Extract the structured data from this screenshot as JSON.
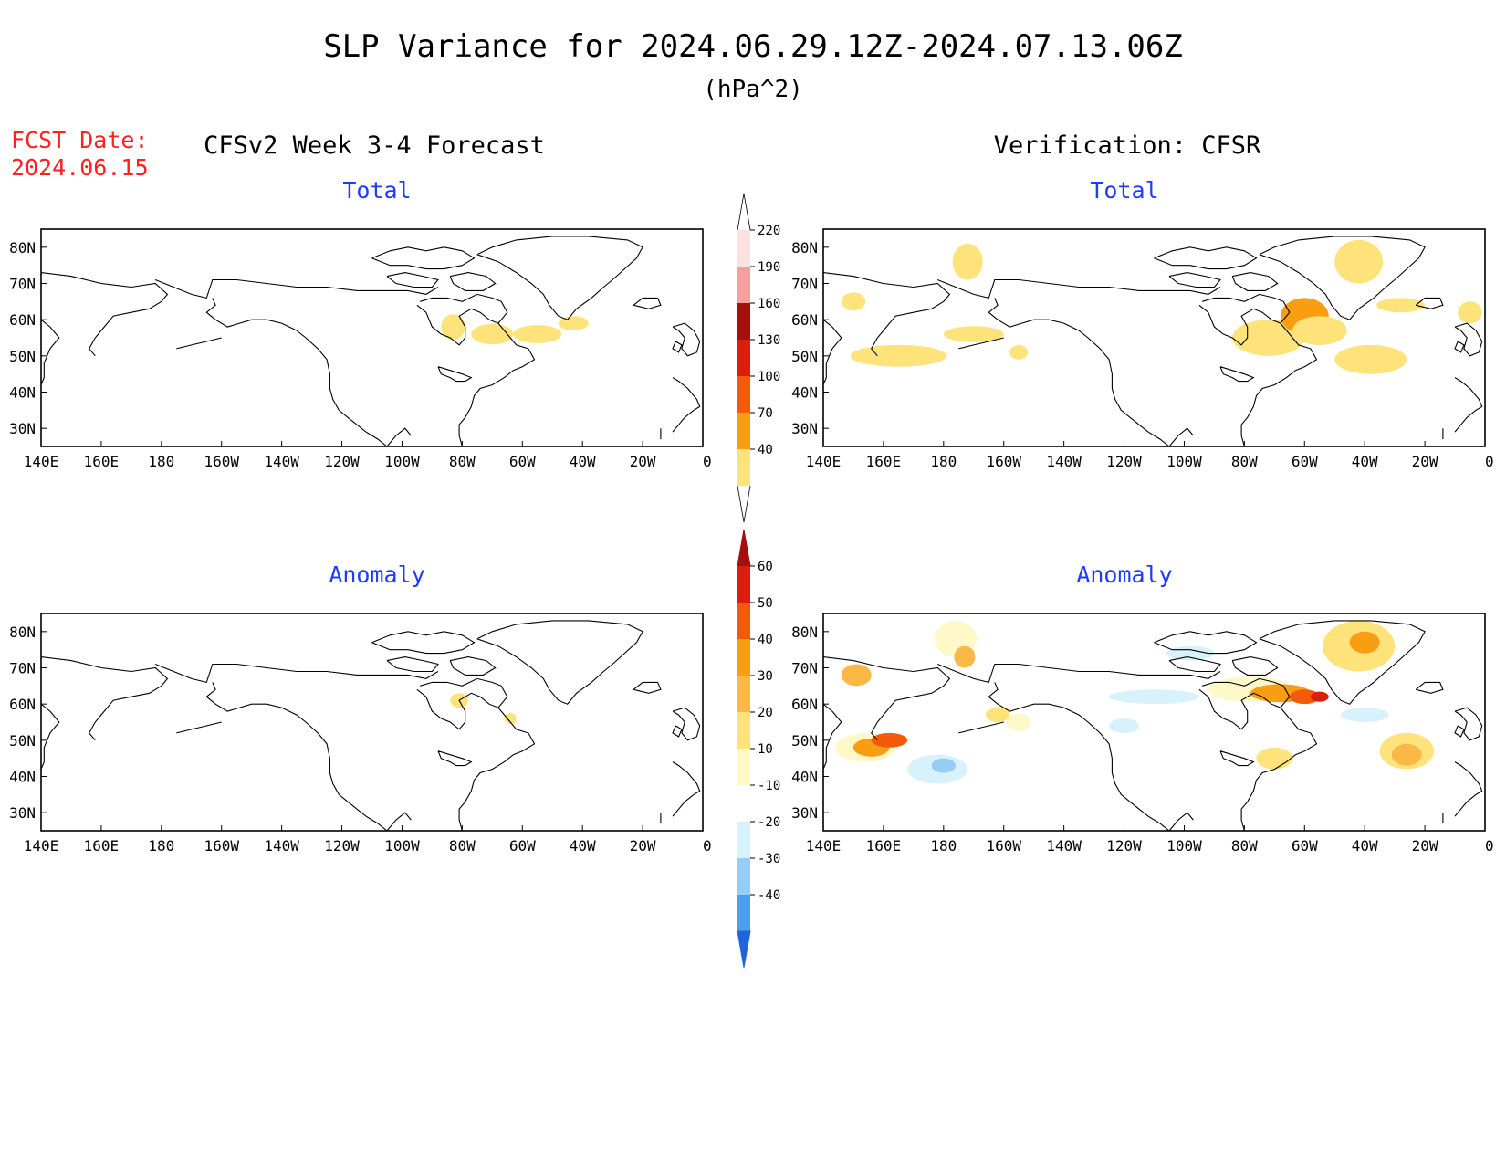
{
  "header": {
    "title": "SLP Variance for 2024.06.29.12Z-2024.07.13.06Z",
    "units": "(hPa^2)",
    "fcst_label": "FCST Date:",
    "fcst_date": "2024.06.15"
  },
  "columns": {
    "left": "CFSv2 Week 3-4 Forecast",
    "right": "Verification: CFSR"
  },
  "panels": [
    {
      "id": "fcst-total",
      "title": "Total"
    },
    {
      "id": "verif-total",
      "title": "Total"
    },
    {
      "id": "fcst-anomaly",
      "title": "Anomaly"
    },
    {
      "id": "verif-anomaly",
      "title": "Anomaly"
    }
  ],
  "axes": {
    "lon_labels": [
      "140E",
      "160E",
      "180",
      "160W",
      "140W",
      "120W",
      "100W",
      "80W",
      "60W",
      "40W",
      "20W",
      "0"
    ],
    "lat_labels": [
      "80N",
      "70N",
      "60N",
      "50N",
      "40N",
      "30N"
    ]
  },
  "colorbars": {
    "total": {
      "labels": [
        "220",
        "190",
        "160",
        "130",
        "100",
        "70",
        "40"
      ],
      "colors": [
        "#fde0e0",
        "#f4a0a0",
        "#a50f0f",
        "#dd1e0f",
        "#f45a0a",
        "#f99e12",
        "#fde37a"
      ]
    },
    "anomaly": {
      "labels": [
        "60",
        "50",
        "40",
        "30",
        "20",
        "10",
        "-10",
        "-20",
        "-30",
        "-40"
      ],
      "colors": [
        "#a50f0f",
        "#dd1e0f",
        "#f45a0a",
        "#f99e12",
        "#fbb845",
        "#fde37a",
        "#fff8c8",
        "#ffffff",
        "#d7f2fb",
        "#96cdf5",
        "#4aa0ee",
        "#1e64dc"
      ]
    }
  },
  "colors": {
    "title_text": "#000000",
    "panel_title": "#1e3cff",
    "fcst_date": "#ff2020"
  }
}
